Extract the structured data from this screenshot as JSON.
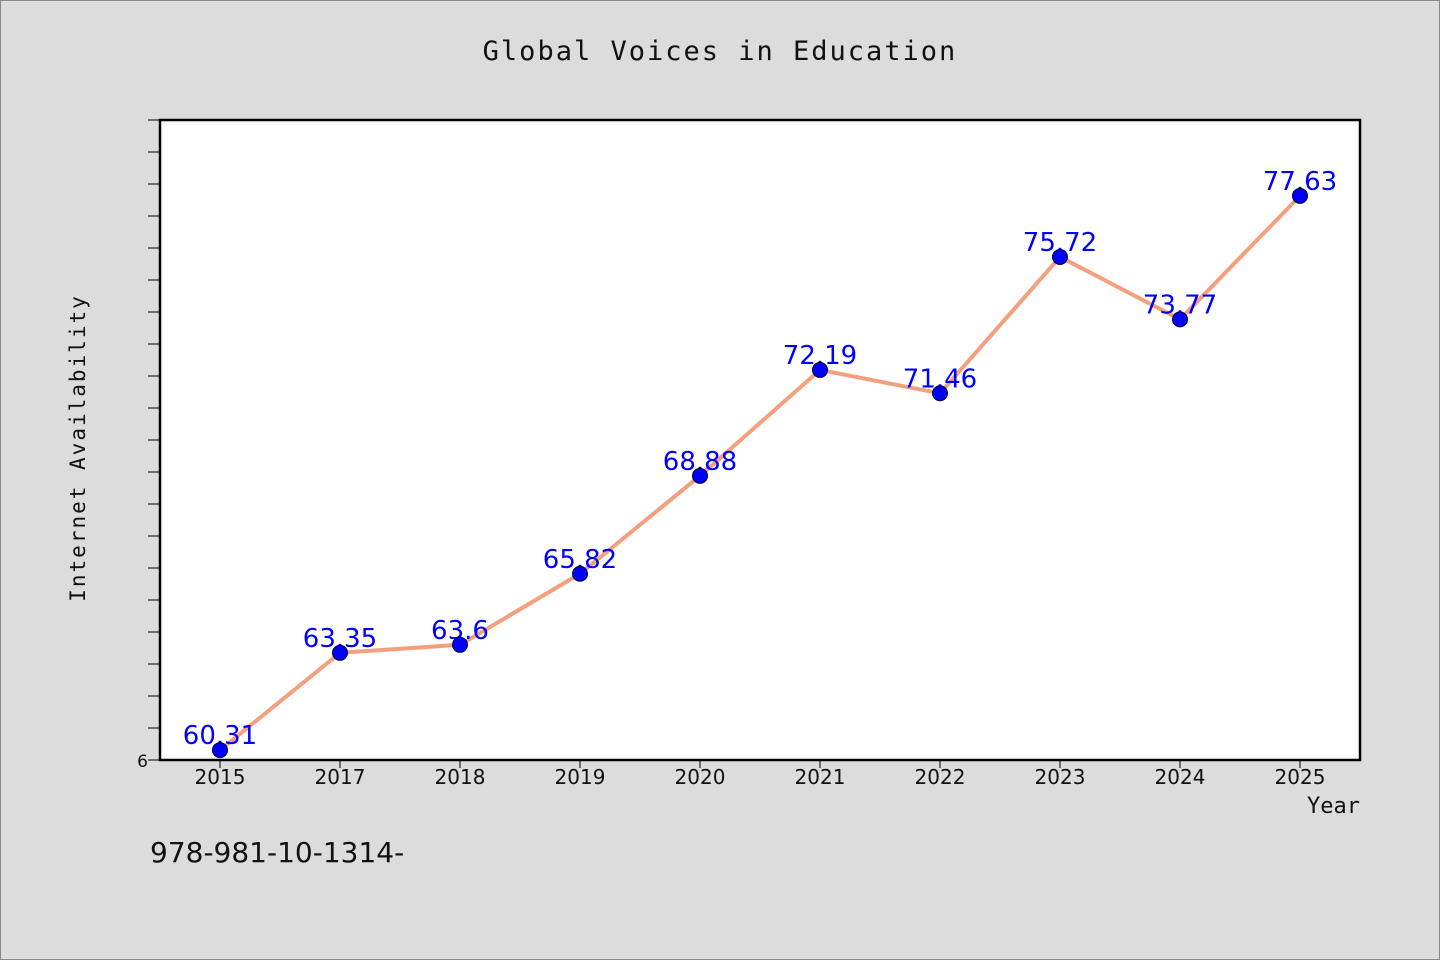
{
  "chart_data": {
    "type": "line",
    "title": "Global Voices in Education",
    "xlabel": "Year",
    "ylabel": "Internet Availability",
    "categories": [
      "2015",
      "2017",
      "2018",
      "2019",
      "2020",
      "2021",
      "2022",
      "2023",
      "2024",
      "2025"
    ],
    "series": [
      {
        "values": [
          60.31,
          63.35,
          63.6,
          65.82,
          68.88,
          72.19,
          71.46,
          75.72,
          73.77,
          77.63
        ],
        "line_color": "#f4a07e",
        "marker_color": "#0000ff"
      }
    ],
    "data_labels": [
      "60.31",
      "63.35",
      "63.6",
      "65.82",
      "68.88",
      "72.19",
      "71.46",
      "75.72",
      "73.77",
      "77.63"
    ],
    "ylim": [
      60,
      80
    ],
    "y_tick_labels": [
      "6"
    ],
    "grid": false,
    "legend": "none"
  },
  "footer_text": "978-981-10-1314-"
}
